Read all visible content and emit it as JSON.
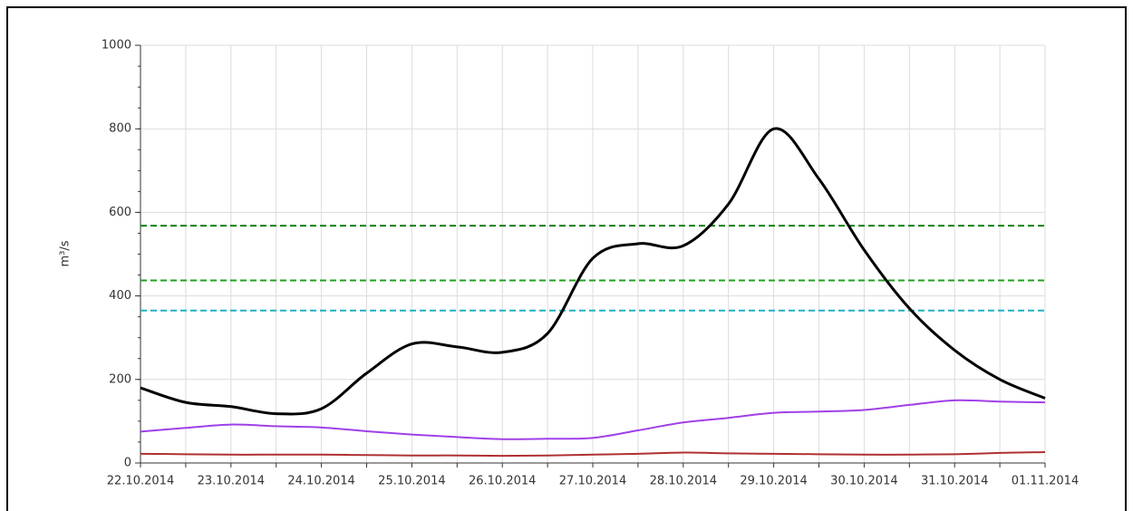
{
  "chart_data": {
    "type": "line",
    "y_label": "m³/s",
    "categories": [
      "22.10.2014",
      null,
      "23.10.2014",
      null,
      "24.10.2014",
      null,
      "25.10.2014",
      null,
      "26.10.2014",
      null,
      "27.10.2014",
      null,
      "28.10.2014",
      null,
      "29.10.2014",
      null,
      "30.10.2014",
      null,
      "31.10.2014",
      null,
      "01.11.2014"
    ],
    "series": [
      {
        "color": "#000000",
        "values": [
          180,
          145,
          135,
          118,
          130,
          215,
          285,
          278,
          265,
          310,
          490,
          525,
          520,
          620,
          800,
          680,
          510,
          370,
          270,
          200,
          155
        ]
      },
      {
        "color": "#a040e8",
        "values": [
          75,
          84,
          92,
          88,
          85,
          76,
          68,
          62,
          57,
          58,
          60,
          78,
          97,
          108,
          120,
          123,
          127,
          139,
          150,
          147,
          145
        ]
      },
      {
        "color": "#b03030",
        "values": [
          22,
          21,
          20,
          20,
          20,
          19,
          18,
          18,
          17,
          18,
          20,
          22,
          25,
          23,
          22,
          21,
          20,
          20,
          21,
          24,
          26
        ]
      }
    ],
    "hlines": [
      {
        "value": 568,
        "color": "#108010"
      },
      {
        "value": 437,
        "color": "#20a020"
      },
      {
        "value": 365,
        "color": "#20b0c0"
      }
    ],
    "ylim": [
      0,
      1000
    ],
    "yticks": [
      0,
      200,
      400,
      600,
      800,
      1000
    ],
    "grid": true
  }
}
